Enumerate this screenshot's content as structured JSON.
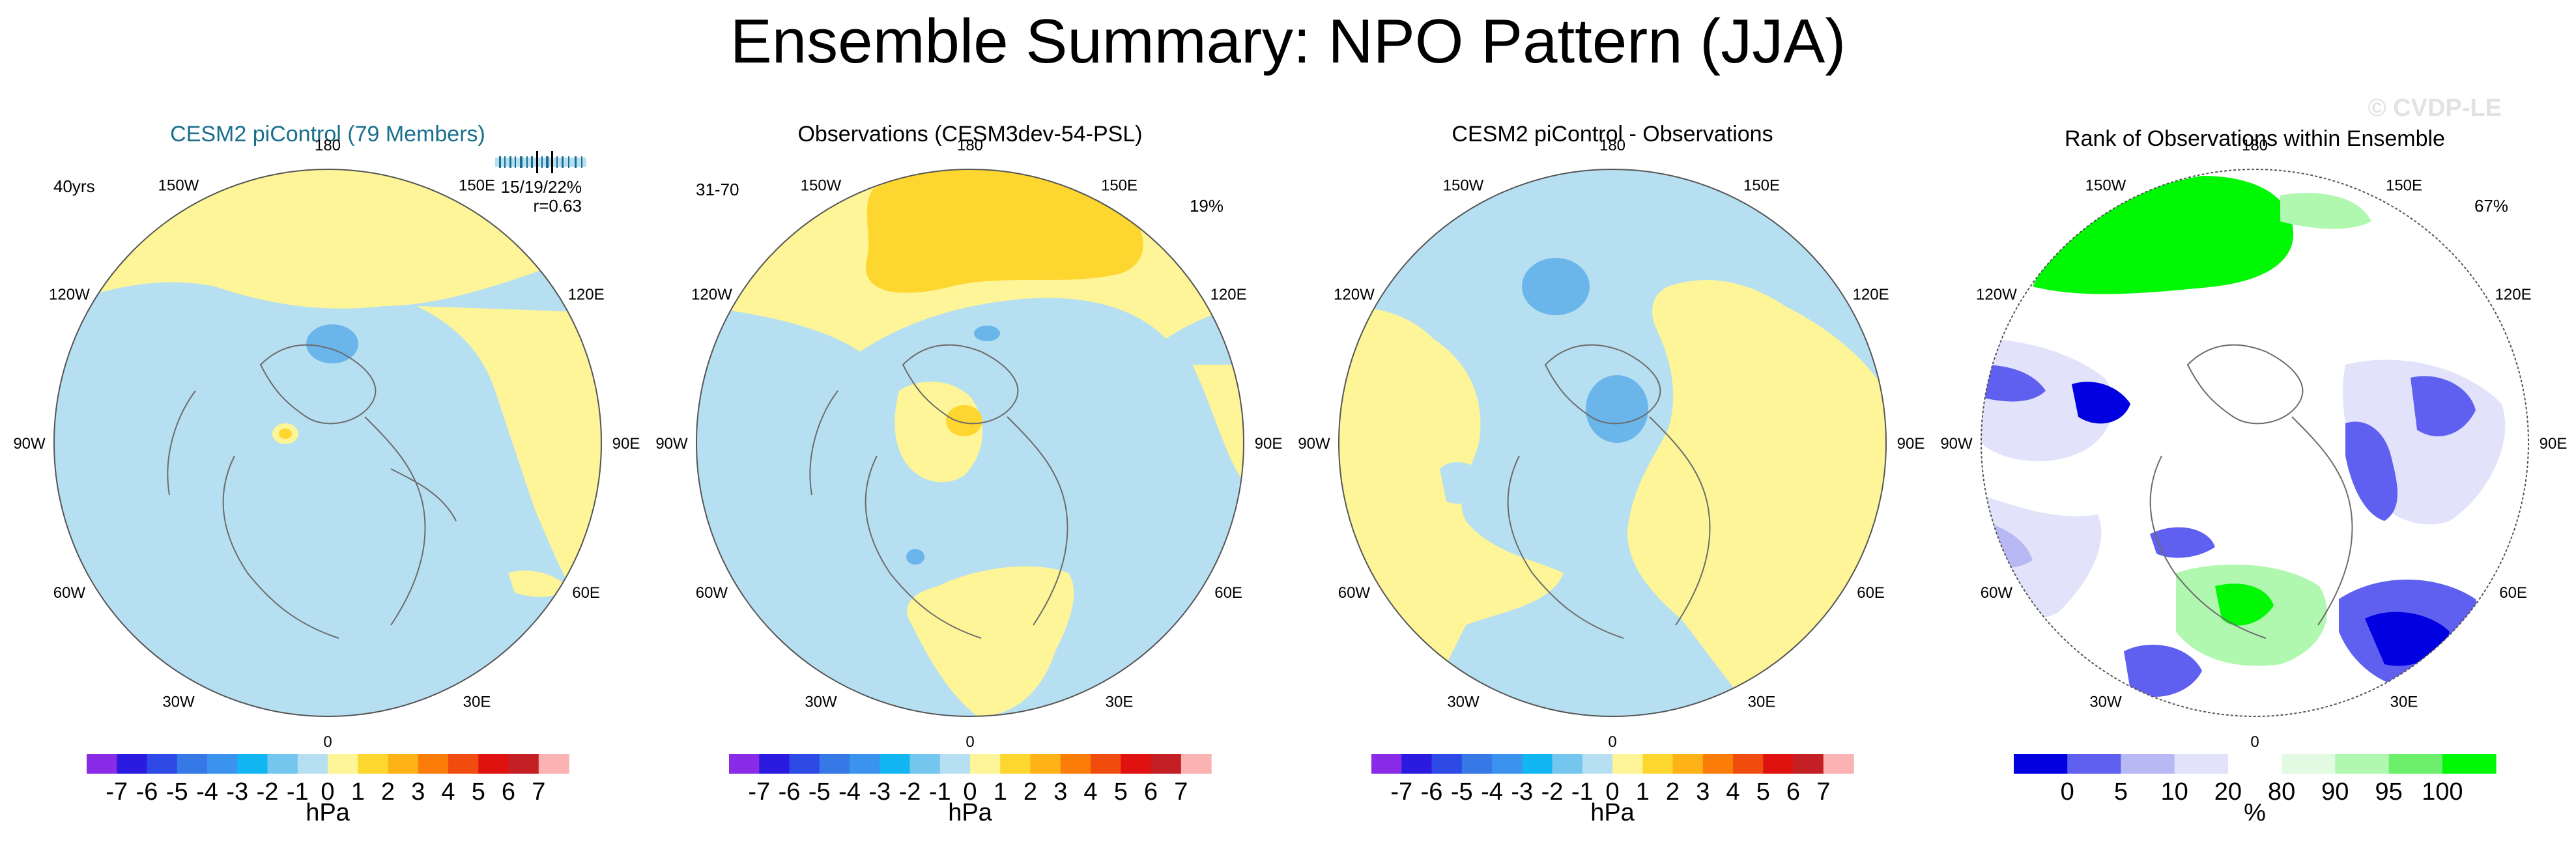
{
  "page": {
    "title": "Ensemble Summary: NPO Pattern (JJA)",
    "watermark": "© CVDP-LE"
  },
  "colors": {
    "ocean_neg": "#b7dff2",
    "land_pos": "#fdf597",
    "mid_pos": "#fed630",
    "mid_neg": "#6ab5ea",
    "rank_green": "#00f804",
    "rank_lightgreen": "#b0f7b0",
    "rank_blue": "#6060f0",
    "rank_darkblue": "#0000e0",
    "rank_lavender": "#b8b8f4",
    "rank_pale": "#e2e2fa",
    "cesm_title": "#1a6f8e"
  },
  "chart_data": [
    {
      "type": "heatmap",
      "title": "CESM2 piControl (79 Members)",
      "left_label": "40yrs",
      "right_label": "",
      "stats_line1": "15/19/22%",
      "stats_line2": "r=0.63",
      "longitude_labels": [
        "180",
        "150E",
        "120E",
        "90E",
        "60E",
        "30E",
        "0",
        "30W",
        "60W",
        "90W",
        "120W",
        "150W"
      ],
      "colorbar": {
        "ticks": [
          "-7",
          "-6",
          "-5",
          "-4",
          "-3",
          "-2",
          "-1",
          "0",
          "1",
          "2",
          "3",
          "4",
          "5",
          "6",
          "7"
        ],
        "colors": [
          "#8a2be8",
          "#2b1adf",
          "#2d49e6",
          "#3678e6",
          "#3b93ef",
          "#12b6f2",
          "#74c6ee",
          "#b7dff2",
          "#fdf597",
          "#fed630",
          "#fdb317",
          "#fb7d07",
          "#f04c0e",
          "#e0120f",
          "#c41f24",
          "#fbb2b2"
        ],
        "unit": "hPa"
      }
    },
    {
      "type": "heatmap",
      "title": "Observations (CESM3dev-54-PSL)",
      "left_label": "31-70",
      "right_label": "19%",
      "longitude_labels": [
        "180",
        "150E",
        "120E",
        "90E",
        "60E",
        "30E",
        "0",
        "30W",
        "60W",
        "90W",
        "120W",
        "150W"
      ],
      "colorbar": {
        "ticks": [
          "-7",
          "-6",
          "-5",
          "-4",
          "-3",
          "-2",
          "-1",
          "0",
          "1",
          "2",
          "3",
          "4",
          "5",
          "6",
          "7"
        ],
        "colors": [
          "#8a2be8",
          "#2b1adf",
          "#2d49e6",
          "#3678e6",
          "#3b93ef",
          "#12b6f2",
          "#74c6ee",
          "#b7dff2",
          "#fdf597",
          "#fed630",
          "#fdb317",
          "#fb7d07",
          "#f04c0e",
          "#e0120f",
          "#c41f24",
          "#fbb2b2"
        ],
        "unit": "hPa"
      }
    },
    {
      "type": "heatmap",
      "title": "CESM2 piControl - Observations",
      "left_label": "",
      "right_label": "",
      "longitude_labels": [
        "180",
        "150E",
        "120E",
        "90E",
        "60E",
        "30E",
        "0",
        "30W",
        "60W",
        "90W",
        "120W",
        "150W"
      ],
      "colorbar": {
        "ticks": [
          "-7",
          "-6",
          "-5",
          "-4",
          "-3",
          "-2",
          "-1",
          "0",
          "1",
          "2",
          "3",
          "4",
          "5",
          "6",
          "7"
        ],
        "colors": [
          "#8a2be8",
          "#2b1adf",
          "#2d49e6",
          "#3678e6",
          "#3b93ef",
          "#12b6f2",
          "#74c6ee",
          "#b7dff2",
          "#fdf597",
          "#fed630",
          "#fdb317",
          "#fb7d07",
          "#f04c0e",
          "#e0120f",
          "#c41f24",
          "#fbb2b2"
        ],
        "unit": "hPa"
      }
    },
    {
      "type": "heatmap",
      "title": "Rank of Observations within Ensemble",
      "left_label": "",
      "right_label": "67%",
      "longitude_labels": [
        "180",
        "150E",
        "120E",
        "90E",
        "60E",
        "30E",
        "0",
        "30W",
        "60W",
        "90W",
        "120W",
        "150W"
      ],
      "colorbar": {
        "ticks": [
          "0",
          "5",
          "10",
          "20",
          "80",
          "90",
          "95",
          "100"
        ],
        "colors": [
          "#0000e0",
          "#6060f0",
          "#b8b8f4",
          "#e2e2fa",
          "#ffffff",
          "#e2fae2",
          "#b0f7b0",
          "#6cf06c",
          "#00f804"
        ],
        "unit": "%"
      }
    }
  ]
}
